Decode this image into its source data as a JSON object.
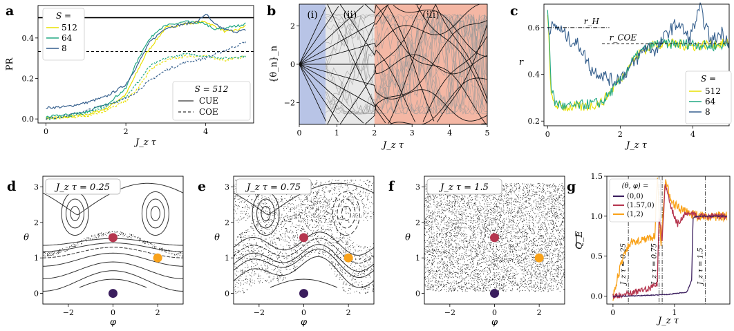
{
  "panels": {
    "a": {
      "letter": "a"
    },
    "b": {
      "letter": "b"
    },
    "c": {
      "letter": "c"
    },
    "d": {
      "letter": "d"
    },
    "e": {
      "letter": "e"
    },
    "f": {
      "letter": "f"
    },
    "g": {
      "letter": "g"
    }
  },
  "chart_data": [
    {
      "id": "a",
      "type": "line",
      "xlabel": "J_z τ",
      "ylabel": "PR",
      "xlim": [
        0,
        5
      ],
      "ylim": [
        0,
        0.56
      ],
      "xticks": [
        "0",
        "2",
        "4"
      ],
      "yticks": [
        "0.0",
        "0.2",
        "0.4"
      ],
      "legend_title": "S =",
      "legend_top_left": [
        "512",
        "64",
        "8"
      ],
      "legend2_title": "S = 512",
      "legend2_entries": [
        "CUE",
        "COE"
      ],
      "reference_lines": {
        "CUE": 0.5,
        "COE": 0.333
      },
      "series": [
        {
          "name": "512",
          "color": "#e8e000",
          "x": [
            0,
            0.5,
            1,
            1.5,
            2,
            2.2,
            2.5,
            2.8,
            3,
            3.5,
            4,
            4.2,
            4.5,
            4.8,
            5
          ],
          "y": [
            0.005,
            0.01,
            0.02,
            0.05,
            0.12,
            0.2,
            0.32,
            0.4,
            0.45,
            0.47,
            0.48,
            0.46,
            0.43,
            0.44,
            0.46
          ]
        },
        {
          "name": "64",
          "color": "#22a884",
          "x": [
            0,
            0.5,
            1,
            1.5,
            2,
            2.2,
            2.5,
            2.8,
            3,
            3.5,
            4,
            4.2,
            4.5,
            4.8,
            5
          ],
          "y": [
            0.01,
            0.02,
            0.035,
            0.07,
            0.15,
            0.25,
            0.37,
            0.44,
            0.46,
            0.48,
            0.47,
            0.44,
            0.45,
            0.46,
            0.47
          ]
        },
        {
          "name": "8",
          "color": "#355f8d",
          "x": [
            0,
            0.5,
            1,
            1.5,
            2,
            2.3,
            2.6,
            3,
            3.5,
            3.8,
            4,
            4.2,
            4.5,
            4.8,
            5
          ],
          "y": [
            0.055,
            0.06,
            0.08,
            0.11,
            0.17,
            0.27,
            0.38,
            0.45,
            0.47,
            0.48,
            0.52,
            0.47,
            0.44,
            0.43,
            0.44
          ]
        },
        {
          "name": "512 COE",
          "color": "#e8e000",
          "dashed": true,
          "x": [
            0,
            0.5,
            1,
            1.5,
            2,
            2.3,
            2.6,
            3,
            3.5,
            4,
            4.5,
            5
          ],
          "y": [
            0.0,
            0.005,
            0.015,
            0.04,
            0.09,
            0.15,
            0.24,
            0.29,
            0.31,
            0.31,
            0.29,
            0.31
          ]
        },
        {
          "name": "64 COE",
          "color": "#22a884",
          "dashed": true,
          "x": [
            0,
            0.5,
            1,
            1.5,
            2,
            2.3,
            2.6,
            3,
            3.5,
            4,
            4.5,
            5
          ],
          "y": [
            0.0,
            0.01,
            0.03,
            0.06,
            0.11,
            0.18,
            0.26,
            0.3,
            0.32,
            0.31,
            0.3,
            0.31
          ]
        },
        {
          "name": "8 COE",
          "color": "#355f8d",
          "dashed": true,
          "x": [
            0,
            0.5,
            1,
            1.5,
            2,
            2.3,
            2.6,
            3,
            3.5,
            4,
            4.5,
            5
          ],
          "y": [
            0.0,
            0.015,
            0.04,
            0.07,
            0.1,
            0.14,
            0.19,
            0.24,
            0.28,
            0.3,
            0.34,
            0.38
          ]
        }
      ]
    },
    {
      "id": "b",
      "type": "line",
      "xlabel": "J_z τ",
      "ylabel": "{θ_n}_n",
      "xlim": [
        0,
        5
      ],
      "ylim": [
        -3.14,
        3.14
      ],
      "xticks": [
        "0",
        "1",
        "2",
        "3",
        "4",
        "5"
      ],
      "yticks": [
        "−2",
        "0",
        "2"
      ],
      "regions": [
        {
          "label": "(i)",
          "from": 0,
          "to": 0.7,
          "color": "#b8c4e6"
        },
        {
          "label": "(ii)",
          "from": 0.7,
          "to": 2.0,
          "color": "#e8e8e8"
        },
        {
          "label": "(iii)",
          "from": 2.0,
          "to": 5.0,
          "color": "#f4b7a4"
        }
      ],
      "fan_slopes": [
        -4.2,
        -2.9,
        -1.8,
        -1.1,
        -0.55,
        0,
        0.55,
        1.1,
        1.8,
        2.9,
        4.2
      ]
    },
    {
      "id": "c",
      "type": "line",
      "xlabel": "J_z τ",
      "ylabel": "r",
      "xlim": [
        -0.1,
        5
      ],
      "ylim": [
        0.18,
        0.7
      ],
      "xticks": [
        "0",
        "2",
        "4"
      ],
      "yticks": [
        "0.2",
        "0.4",
        "0.6"
      ],
      "annotations": [
        "r_H",
        "r_COE"
      ],
      "reference_lines": {
        "r_H": 0.6,
        "r_COE": 0.53
      },
      "legend_title": "S =",
      "legend_entries": [
        "512",
        "64",
        "8"
      ],
      "series": [
        {
          "name": "512",
          "color": "#e8e000",
          "x": [
            0,
            0.05,
            0.1,
            0.2,
            0.5,
            1,
            1.5,
            2,
            2.3,
            2.6,
            3,
            3.5,
            4,
            4.5,
            5
          ],
          "y": [
            0.65,
            0.5,
            0.3,
            0.27,
            0.26,
            0.26,
            0.28,
            0.38,
            0.45,
            0.5,
            0.53,
            0.53,
            0.52,
            0.53,
            0.53
          ]
        },
        {
          "name": "64",
          "color": "#22a884",
          "x": [
            0,
            0.05,
            0.1,
            0.2,
            0.5,
            1,
            1.5,
            2,
            2.3,
            2.6,
            3,
            3.5,
            4,
            4.5,
            5
          ],
          "y": [
            0.67,
            0.55,
            0.35,
            0.28,
            0.26,
            0.27,
            0.28,
            0.37,
            0.45,
            0.5,
            0.53,
            0.53,
            0.53,
            0.52,
            0.53
          ]
        },
        {
          "name": "8",
          "color": "#355f8d",
          "x": [
            0,
            0.3,
            0.6,
            0.9,
            1.2,
            1.5,
            1.8,
            2.1,
            2.4,
            2.7,
            3,
            3.3,
            3.6,
            3.9,
            4.2,
            4.5,
            4.8,
            5
          ],
          "y": [
            0.6,
            0.6,
            0.55,
            0.52,
            0.42,
            0.4,
            0.37,
            0.4,
            0.45,
            0.52,
            0.5,
            0.58,
            0.62,
            0.55,
            0.68,
            0.54,
            0.58,
            0.54
          ]
        }
      ]
    },
    {
      "id": "d",
      "type": "scatter",
      "label": "J_z τ = 0.25",
      "xlabel": "φ",
      "ylabel": "θ",
      "xlim": [
        -3.14,
        3.14
      ],
      "ylim": [
        -0.3,
        3.3
      ],
      "xticks": [
        "−2",
        "0",
        "2"
      ],
      "yticks": [
        "0",
        "1",
        "2",
        "3"
      ],
      "points": [
        {
          "phi": 0,
          "theta": 1.57,
          "color": "#b5364f"
        },
        {
          "phi": 2,
          "theta": 1,
          "color": "#f9a21a"
        },
        {
          "phi": 0,
          "theta": 0,
          "color": "#3b1e5e"
        }
      ]
    },
    {
      "id": "e",
      "type": "scatter",
      "label": "J_z τ = 0.75",
      "xlabel": "φ",
      "ylabel": "θ",
      "xlim": [
        -3.14,
        3.14
      ],
      "ylim": [
        -0.3,
        3.3
      ],
      "xticks": [
        "−2",
        "0",
        "2"
      ],
      "yticks": [
        "0",
        "1",
        "2",
        "3"
      ],
      "points": [
        {
          "phi": 0,
          "theta": 1.57,
          "color": "#b5364f"
        },
        {
          "phi": 2,
          "theta": 1,
          "color": "#f9a21a"
        },
        {
          "phi": 0,
          "theta": 0,
          "color": "#3b1e5e"
        }
      ]
    },
    {
      "id": "f",
      "type": "scatter",
      "label": "J_z τ = 1.5",
      "xlabel": "φ",
      "ylabel": "θ",
      "xlim": [
        -3.14,
        3.14
      ],
      "ylim": [
        -0.3,
        3.3
      ],
      "xticks": [
        "−2",
        "0",
        "2"
      ],
      "yticks": [
        "0",
        "1",
        "2",
        "3"
      ],
      "points": [
        {
          "phi": 0,
          "theta": 1.57,
          "color": "#b5364f"
        },
        {
          "phi": 2,
          "theta": 1,
          "color": "#f9a21a"
        },
        {
          "phi": 0,
          "theta": 0,
          "color": "#3b1e5e"
        }
      ]
    },
    {
      "id": "g",
      "type": "line",
      "xlabel": "J_z τ",
      "ylabel": "Q_E",
      "xlim": [
        -0.1,
        1.9
      ],
      "ylim": [
        -0.1,
        1.5
      ],
      "xticks": [
        "0",
        "1"
      ],
      "yticks": [
        "0.0",
        "0.5",
        "1.0",
        "1.5"
      ],
      "legend_title": "(θ, φ) =",
      "legend_entries": [
        "(0,0)",
        "(1.57,0)",
        "(1,2)"
      ],
      "vlines": [
        {
          "x": 0.25,
          "label": "J_z τ = 0.25"
        },
        {
          "x": 0.75,
          "label": "J_z τ = 0.75"
        },
        {
          "x": 0.8,
          "label": ""
        },
        {
          "x": 1.5,
          "label": "J_z τ = 1.5"
        }
      ],
      "series": [
        {
          "name": "(0,0)",
          "color": "#3b1e5e",
          "x": [
            0,
            0.3,
            0.6,
            0.9,
            1.2,
            1.28,
            1.3,
            1.4,
            1.6,
            1.85
          ],
          "y": [
            0.0,
            0.0,
            0.01,
            0.02,
            0.05,
            0.2,
            0.98,
            1.0,
            1.0,
            1.0
          ]
        },
        {
          "name": "(1.57,0)",
          "color": "#b5364f",
          "x": [
            0,
            0.2,
            0.4,
            0.6,
            0.72,
            0.75,
            0.8,
            0.85,
            0.95,
            1.05,
            1.2,
            1.4,
            1.6,
            1.85
          ],
          "y": [
            0.0,
            0.02,
            0.05,
            0.1,
            0.15,
            1.0,
            0.7,
            1.4,
            1.1,
            0.9,
            1.05,
            1.0,
            1.0,
            1.0
          ]
        },
        {
          "name": "(1,2)",
          "color": "#f9a21a",
          "x": [
            0,
            0.1,
            0.2,
            0.3,
            0.45,
            0.6,
            0.68,
            0.72,
            0.78,
            0.85,
            0.95,
            1.05,
            1.2,
            1.4,
            1.6,
            1.85
          ],
          "y": [
            0.0,
            0.3,
            0.55,
            0.68,
            0.7,
            0.72,
            0.76,
            1.5,
            0.6,
            1.45,
            1.2,
            1.1,
            1.05,
            1.0,
            1.0,
            1.0
          ]
        }
      ]
    }
  ]
}
